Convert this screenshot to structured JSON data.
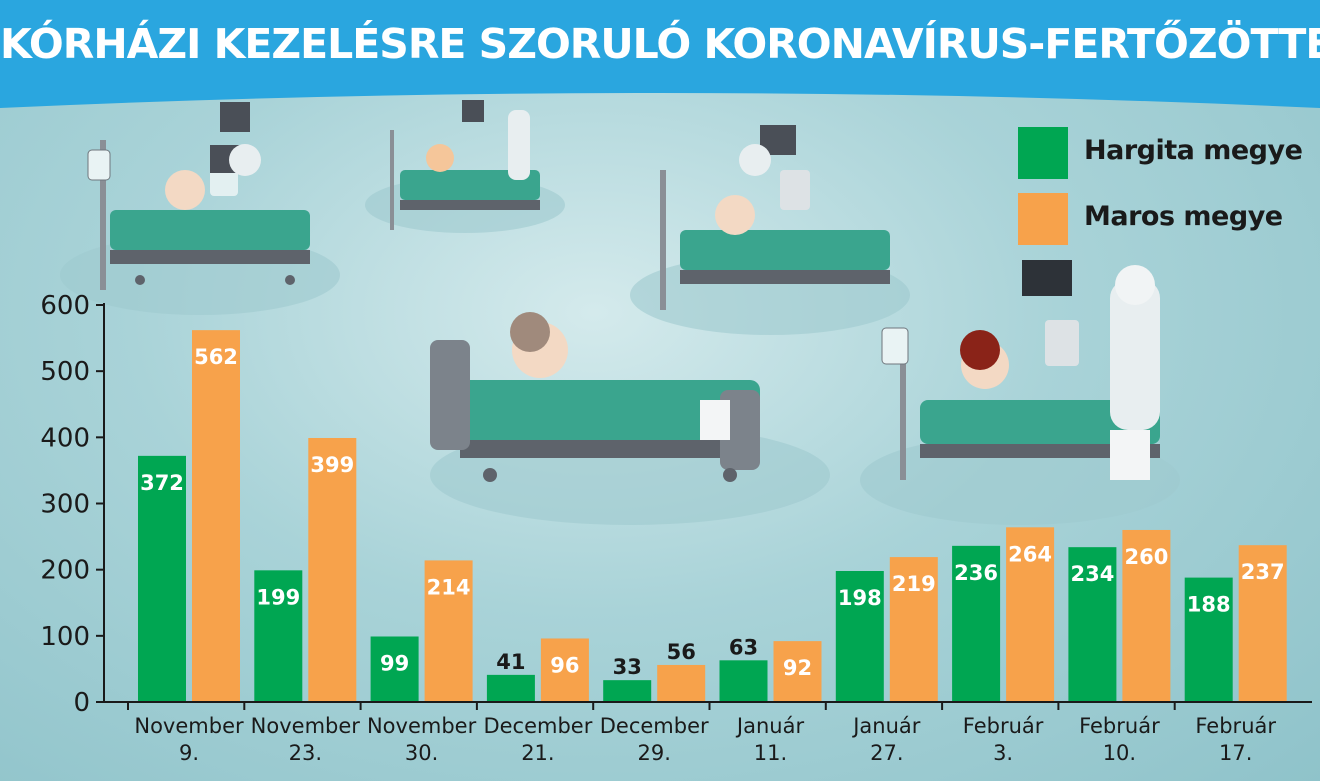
{
  "header": {
    "title": "KÓRHÁZI KEZELÉSRE SZORULÓ KORONAVÍRUS-FERTŐZÖTTEK"
  },
  "colors": {
    "banner": "#2aa6df",
    "green": "#00a652",
    "orange": "#f7a24b",
    "text": "#1a1a1a"
  },
  "illustration_icons": [
    "hospital-bed-icon",
    "patient-icon",
    "doctor-icon",
    "heart-monitor-icon",
    "iv-drip-icon"
  ],
  "chart_data": {
    "type": "bar",
    "title": "",
    "xlabel": "",
    "ylabel": "",
    "ylim": [
      0,
      600
    ],
    "yticks": [
      0,
      100,
      200,
      300,
      400,
      500,
      600
    ],
    "grid": false,
    "legend_position": "top-right",
    "categories": [
      [
        "November",
        "9."
      ],
      [
        "November",
        "23."
      ],
      [
        "November",
        "30."
      ],
      [
        "December",
        "21."
      ],
      [
        "December",
        "29."
      ],
      [
        "Január",
        "11."
      ],
      [
        "Január",
        "27."
      ],
      [
        "Február",
        "3."
      ],
      [
        "Február",
        "10."
      ],
      [
        "Február",
        "17."
      ]
    ],
    "series": [
      {
        "name": "Hargita megye",
        "color": "#00a652",
        "values": [
          372,
          199,
          99,
          41,
          33,
          63,
          198,
          236,
          234,
          188
        ]
      },
      {
        "name": "Maros megye",
        "color": "#f7a24b",
        "values": [
          562,
          399,
          214,
          96,
          56,
          92,
          219,
          264,
          260,
          237
        ]
      }
    ]
  }
}
